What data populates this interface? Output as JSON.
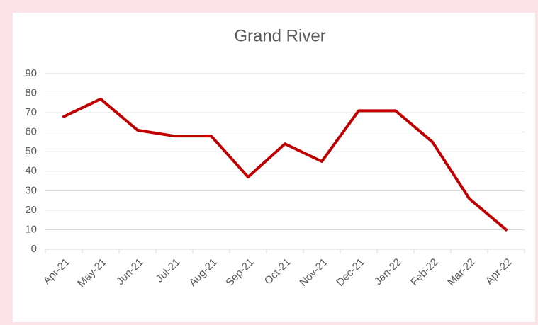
{
  "chart_data": {
    "type": "line",
    "title": "Grand River",
    "categories": [
      "Apr-21",
      "May-21",
      "Jun-21",
      "Jul-21",
      "Aug-21",
      "Sep-21",
      "Oct-21",
      "Nov-21",
      "Dec-21",
      "Jan-22",
      "Feb-22",
      "Mar-22",
      "Apr-22"
    ],
    "values": [
      68,
      77,
      61,
      58,
      58,
      37,
      54,
      45,
      71,
      71,
      55,
      26,
      10
    ],
    "color": "#c00000",
    "ylim": [
      0,
      90
    ],
    "yticks": [
      0,
      10,
      20,
      30,
      40,
      50,
      60,
      70,
      80,
      90
    ],
    "grid": true
  }
}
